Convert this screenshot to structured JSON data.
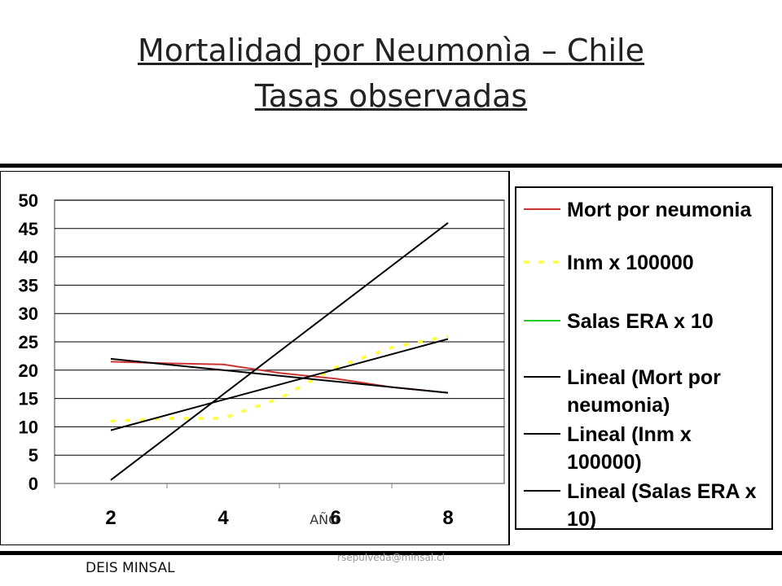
{
  "page": {
    "title_line1": "Mortalidad por Neumonìa – Chile",
    "title_line2": "Tasas observadas",
    "footer_left": "DEIS MINSAL",
    "footer_center": "rsepulveda@minsal.cl"
  },
  "chart_data": {
    "type": "line",
    "xlabel": "AÑO",
    "ylabel": "",
    "x_ticks": [
      "2",
      "4",
      "6",
      "8"
    ],
    "y_ticks": [
      "0",
      "5",
      "10",
      "15",
      "20",
      "25",
      "30",
      "35",
      "40",
      "45",
      "50"
    ],
    "xlim": [
      1,
      9
    ],
    "ylim": [
      0,
      50
    ],
    "grid": true,
    "legend_position": "right",
    "series": [
      {
        "name": "Mort por neumonia",
        "color": "#cc3333",
        "style": "solid",
        "x": [
          2,
          3,
          4,
          5,
          6,
          7,
          8
        ],
        "y": [
          21.5,
          21.2,
          21,
          19.5,
          18.5,
          17,
          16
        ]
      },
      {
        "name": "Inm x 100000",
        "color": "#ffff33",
        "style": "dashed",
        "x": [
          2,
          3,
          4,
          5,
          6,
          7,
          8
        ],
        "y": [
          11,
          11.5,
          11.5,
          15,
          20.5,
          24,
          26
        ]
      },
      {
        "name": "Salas ERA x 10",
        "color": "#22cc22",
        "style": "solid",
        "x": [],
        "y": []
      },
      {
        "name": "Lineal (Mort por neumonia)",
        "color": "#000000",
        "style": "solid",
        "x": [
          2,
          8
        ],
        "y": [
          22,
          16
        ]
      },
      {
        "name": "Lineal (Inm x 100000)",
        "color": "#000000",
        "style": "solid",
        "x": [
          2,
          8
        ],
        "y": [
          9.4,
          25.5
        ]
      },
      {
        "name": "Lineal (Salas ERA x 10)",
        "color": "#000000",
        "style": "solid",
        "x": [
          2,
          8
        ],
        "y": [
          0.6,
          46
        ]
      }
    ]
  }
}
